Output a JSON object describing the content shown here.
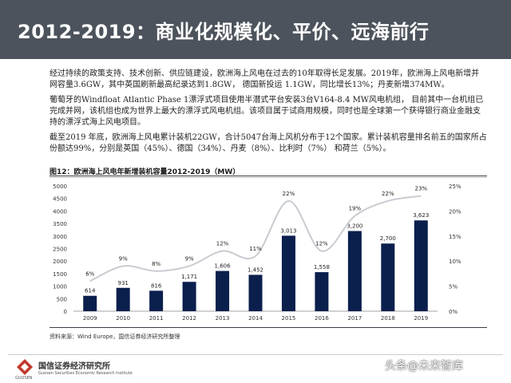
{
  "header": {
    "title": "2012-2019：商业化规模化、平价、远海前行"
  },
  "paragraphs": [
    "经过持续的政策支持、技术创新、供应链建设，欧洲海上风电在过去的10年取得长足发展。2019年，欧洲海上风电新增并网容量3.6GW，其中英国刷新最高纪录达到1.8GW， 德国新投运 1.1GW，同比增长13%；丹麦新增374MW。",
    "葡萄牙的Windfloat Atlantic Phase 1漂浮式项目使用半潜式平台安装3台V164-8.4 MW风电机组， 目前其中一台机组已完成并网，该机组也成为世界上最大的漂浮式风电机组。该项目属于试商用规模，同时也是全球第一个获得银行商业金融支持的漂浮式海上风电项目。",
    "截至2019 年底，欧洲海上风电累计装机22GW，合计5047台海上风机分布于12个国家。累计装机容量排名前五的国家所占份额达99%，分别是英国（45%）、德国（34%）、丹麦（8%）、比利时（7%） 和荷兰（5%）。"
  ],
  "figure": {
    "title": "图12：欧洲海上风电年新增装机容量2012-2019（MW）",
    "source": "资料来源：Wind Europe，国信证券经济研究所整理"
  },
  "chart_data": {
    "type": "bar",
    "categories": [
      "2009",
      "2010",
      "2011",
      "2012",
      "2013",
      "2014",
      "2015",
      "2016",
      "2017",
      "2018",
      "2019"
    ],
    "series": [
      {
        "type": "bar",
        "values": [
          614,
          931,
          816,
          1171,
          1606,
          1452,
          3013,
          1558,
          3200,
          2700,
          3623
        ],
        "labels": [
          "614",
          "931",
          "816",
          "1,171",
          "1,606",
          "1,452",
          "3,013",
          "1,558",
          "3,200",
          "2,700",
          "3,623"
        ]
      },
      {
        "type": "line",
        "axis": "right",
        "values": [
          6,
          9,
          8,
          9,
          12,
          11,
          22,
          12,
          19,
          22,
          23
        ],
        "labels": [
          "6%",
          "9%",
          "8%",
          "9%",
          "12%",
          "11%",
          "22%",
          "12%",
          "19%",
          "22%",
          "23%"
        ]
      }
    ],
    "left_axis": {
      "min": 0,
      "max": 5000,
      "ticks": [
        "0",
        "500",
        "1000",
        "1500",
        "2000",
        "2500",
        "3000",
        "3500",
        "4000",
        "4500",
        "5000"
      ]
    },
    "right_axis": {
      "min": 0,
      "max": 25,
      "ticks": [
        "0%",
        "5%",
        "10%",
        "15%",
        "20%",
        "25%"
      ]
    },
    "bar_color": "#0b1f4d",
    "line_color": "#c8ccd1",
    "grid": false
  },
  "footer": {
    "logo_cn": "国信证券经济研究所",
    "logo_en": "Guosen Securities Economic Research Institute",
    "logo_small": "GUOSEN",
    "watermark": "头条@未来智库"
  }
}
